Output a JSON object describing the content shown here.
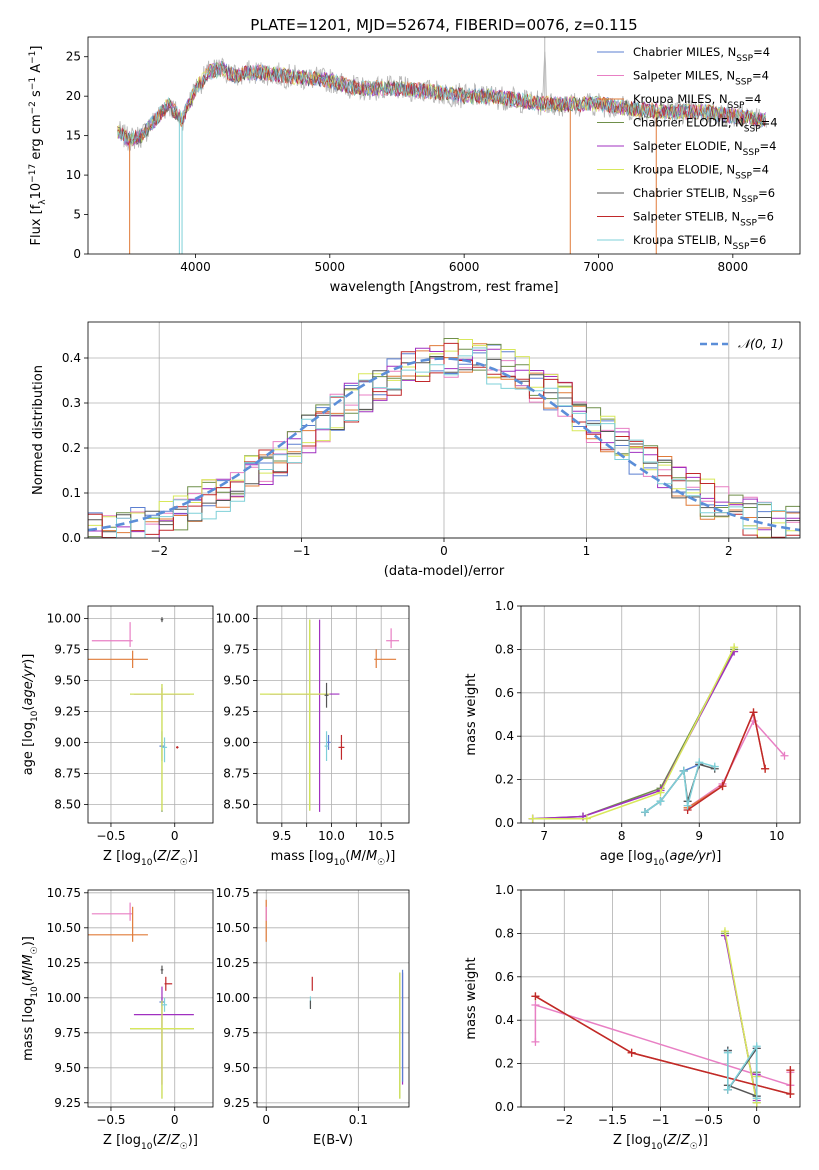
{
  "figure": {
    "title": "PLATE=1201, MJD=52674, FIBERID=0076, z=0.115"
  },
  "series_styles": [
    {
      "name": "Chabrier MILES, N_SSP=4",
      "label_main": "Chabrier MILES, N",
      "label_sub": "SSP",
      "label_tail": "=4",
      "color": "#5b7fd0"
    },
    {
      "name": "Salpeter MILES, N_SSP=4",
      "label_main": "Salpeter MILES, N",
      "label_sub": "SSP",
      "label_tail": "=4",
      "color": "#e87fc4"
    },
    {
      "name": "Kroupa MILES, N_SSP=4",
      "label_main": "Kroupa MILES, N",
      "label_sub": "SSP",
      "label_tail": "=4",
      "color": "#e07b39"
    },
    {
      "name": "Chabrier ELODIE, N_SSP=4",
      "label_main": "Chabrier ELODIE, N",
      "label_sub": "SSP",
      "label_tail": "=4",
      "color": "#6f8f4a"
    },
    {
      "name": "Salpeter ELODIE, N_SSP=4",
      "label_main": "Salpeter ELODIE, N",
      "label_sub": "SSP",
      "label_tail": "=4",
      "color": "#a030c0"
    },
    {
      "name": "Kroupa ELODIE, N_SSP=4",
      "label_main": "Kroupa ELODIE, N",
      "label_sub": "SSP",
      "label_tail": "=4",
      "color": "#d8e85a"
    },
    {
      "name": "Chabrier STELIB, N_SSP=6",
      "label_main": "Chabrier STELIB, N",
      "label_sub": "SSP",
      "label_tail": "=6",
      "color": "#555555"
    },
    {
      "name": "Salpeter STELIB, N_SSP=6",
      "label_main": "Salpeter STELIB, N",
      "label_sub": "SSP",
      "label_tail": "=6",
      "color": "#c0282a"
    },
    {
      "name": "Kroupa STELIB, N_SSP=6",
      "label_main": "Kroupa STELIB, N",
      "label_sub": "SSP",
      "label_tail": "=6",
      "color": "#7fd0d8"
    }
  ],
  "chart_data": [
    {
      "type": "line",
      "id": "spectrum",
      "title": "PLATE=1201, MJD=52674, FIBERID=0076, z=0.115",
      "xlabel": "wavelength [Angstrom, rest frame]",
      "ylabel": "Flux [f_λ 10^-17 erg cm^-2 s^-1 A^-1]",
      "xlim": [
        3200,
        8500
      ],
      "ylim": [
        0,
        27.5
      ],
      "xticks": [
        4000,
        5000,
        6000,
        7000,
        8000
      ],
      "yticks": [
        0,
        5,
        10,
        15,
        20,
        25
      ],
      "grid": false,
      "legend": "top-right",
      "anchors": [
        [
          3420,
          15.5
        ],
        [
          3500,
          14.5
        ],
        [
          3600,
          15
        ],
        [
          3700,
          17
        ],
        [
          3800,
          19
        ],
        [
          3900,
          17
        ],
        [
          4000,
          21
        ],
        [
          4100,
          23
        ],
        [
          4200,
          23.5
        ],
        [
          4300,
          22.5
        ],
        [
          4400,
          23
        ],
        [
          4500,
          23
        ],
        [
          4700,
          22.5
        ],
        [
          5000,
          22
        ],
        [
          5200,
          21
        ],
        [
          5500,
          21
        ],
        [
          5800,
          20.5
        ],
        [
          6000,
          20
        ],
        [
          6200,
          20
        ],
        [
          6400,
          19.5
        ],
        [
          6600,
          19
        ],
        [
          6800,
          19
        ],
        [
          7000,
          19
        ],
        [
          7200,
          18.5
        ],
        [
          7500,
          18
        ],
        [
          7800,
          18
        ],
        [
          8000,
          17.5
        ],
        [
          8250,
          17
        ]
      ],
      "series_note": "9 model spectra plus observed data overlapping"
    },
    {
      "type": "line",
      "id": "residuals",
      "xlabel": "(data-model)/error",
      "ylabel": "Normed distribution",
      "xlim": [
        -2.5,
        2.5
      ],
      "ylim": [
        0,
        0.48
      ],
      "xticks": [
        -2,
        -1,
        0,
        1,
        2
      ],
      "yticks": [
        0.0,
        0.1,
        0.2,
        0.3,
        0.4
      ],
      "grid": true,
      "legend": "top-right",
      "reference_label": "𝒩(0, 1)",
      "bin_width": 0.1
    },
    {
      "type": "scatter",
      "id": "age_vs_Z",
      "xlabel": "Z [log10(Z/Z☉)]",
      "ylabel": "age [log10(age/yr)]",
      "xlim": [
        -0.68,
        0.3
      ],
      "ylim": [
        8.35,
        10.1
      ],
      "xticks": [
        -0.5,
        0.0
      ],
      "yticks": [
        8.5,
        8.75,
        9.0,
        9.25,
        9.5,
        9.75,
        10.0
      ],
      "points": [
        {
          "s": 0,
          "x": -0.1,
          "y": 8.97,
          "ex": [
            0.02,
            0.02
          ],
          "ey": [
            0.12,
            0.12
          ]
        },
        {
          "s": 1,
          "x": -0.35,
          "y": 9.82,
          "ex": [
            0.3,
            0.02
          ],
          "ey": [
            0.05,
            0.15
          ]
        },
        {
          "s": 2,
          "x": -0.33,
          "y": 9.67,
          "ex": [
            0.35,
            0.12
          ],
          "ey": [
            0.07,
            0.07
          ]
        },
        {
          "s": 3,
          "x": -0.1,
          "y": 9.39,
          "ex": [
            0.25,
            0.25
          ],
          "ey": [
            0.95,
            0.08
          ]
        },
        {
          "s": 4,
          "x": -0.1,
          "y": 9.39,
          "ex": [
            0.22,
            0.22
          ],
          "ey": [
            0.05,
            0.05
          ]
        },
        {
          "s": 5,
          "x": -0.1,
          "y": 9.39,
          "ex": [
            0.25,
            0.25
          ],
          "ey": [
            0.94,
            0.08
          ]
        },
        {
          "s": 6,
          "x": -0.1,
          "y": 9.99,
          "ex": [
            0.01,
            0.01
          ],
          "ey": [
            0.02,
            0.02
          ]
        },
        {
          "s": 7,
          "x": 0.02,
          "y": 8.96,
          "ex": [
            0.01,
            0.01
          ],
          "ey": [
            0.01,
            0.01
          ]
        },
        {
          "s": 8,
          "x": -0.08,
          "y": 8.96,
          "ex": [
            0.02,
            0.02
          ],
          "ey": [
            0.12,
            0.08
          ]
        }
      ]
    },
    {
      "type": "scatter",
      "id": "age_vs_mass",
      "xlabel": "mass [log10(M/M☉)]",
      "ylabel": "",
      "xlim": [
        9.25,
        10.78
      ],
      "ylim": [
        8.35,
        10.1
      ],
      "xticks": [
        9.5,
        9.75,
        10.0,
        10.25,
        10.5
      ],
      "yticks": [
        8.5,
        8.75,
        9.0,
        9.25,
        9.5,
        9.75,
        10.0
      ],
      "xticklabels": [
        "9.5",
        "",
        "10.0",
        "",
        "10.5"
      ],
      "points": [
        {
          "s": 0,
          "x": 9.97,
          "y": 9.0,
          "ex": [
            0.02,
            0.02
          ],
          "ey": [
            0.06,
            0.06
          ]
        },
        {
          "s": 1,
          "x": 10.6,
          "y": 9.82,
          "ex": [
            0.05,
            0.08
          ],
          "ey": [
            0.06,
            0.1
          ]
        },
        {
          "s": 2,
          "x": 10.45,
          "y": 9.67,
          "ex": [
            0.02,
            0.2
          ],
          "ey": [
            0.07,
            0.08
          ]
        },
        {
          "s": 3,
          "x": 9.78,
          "y": 9.39,
          "ex": [
            0.5,
            0.2
          ],
          "ey": [
            0.94,
            0.6
          ]
        },
        {
          "s": 4,
          "x": 9.88,
          "y": 9.39,
          "ex": [
            0.5,
            0.2
          ],
          "ey": [
            0.95,
            0.6
          ]
        },
        {
          "s": 5,
          "x": 9.78,
          "y": 9.39,
          "ex": [
            0.5,
            0.2
          ],
          "ey": [
            0.94,
            0.6
          ]
        },
        {
          "s": 6,
          "x": 9.95,
          "y": 9.38,
          "ex": [
            0.02,
            0.02
          ],
          "ey": [
            0.1,
            0.1
          ]
        },
        {
          "s": 7,
          "x": 10.1,
          "y": 8.96,
          "ex": [
            0.03,
            0.03
          ],
          "ey": [
            0.1,
            0.1
          ]
        },
        {
          "s": 8,
          "x": 9.95,
          "y": 8.97,
          "ex": [
            0.02,
            0.02
          ],
          "ey": [
            0.12,
            0.12
          ]
        }
      ]
    },
    {
      "type": "line",
      "id": "weight_vs_age",
      "xlabel": "age [log10(age/yr)]",
      "ylabel": "mass weight",
      "xlim": [
        6.7,
        10.3
      ],
      "ylim": [
        0,
        1.0
      ],
      "xticks": [
        7,
        8,
        9,
        10
      ],
      "yticks": [
        0.0,
        0.2,
        0.4,
        0.6,
        0.8,
        1.0
      ],
      "grid": true,
      "series": [
        {
          "s": 0,
          "x": [
            8.3,
            8.5,
            8.8,
            9.0
          ],
          "y": [
            0.05,
            0.1,
            0.24,
            0.27
          ]
        },
        {
          "s": 1,
          "x": [
            8.85,
            9.3,
            9.7,
            10.1
          ],
          "y": [
            0.07,
            0.18,
            0.47,
            0.31
          ]
        },
        {
          "s": 2,
          "x": [
            8.85,
            9.3,
            9.7,
            9.85
          ],
          "y": [
            0.07,
            0.17,
            0.51,
            0.25
          ]
        },
        {
          "s": 3,
          "x": [
            6.85,
            7.5,
            8.5,
            9.45
          ],
          "y": [
            0.02,
            0.03,
            0.16,
            0.8
          ]
        },
        {
          "s": 4,
          "x": [
            6.85,
            7.5,
            8.5,
            9.45
          ],
          "y": [
            0.02,
            0.03,
            0.15,
            0.79
          ]
        },
        {
          "s": 5,
          "x": [
            6.85,
            7.55,
            8.5,
            9.45
          ],
          "y": [
            0.02,
            0.02,
            0.14,
            0.81
          ]
        },
        {
          "s": 6,
          "x": [
            8.3,
            8.5,
            8.8,
            8.85,
            9.0,
            9.2
          ],
          "y": [
            0.05,
            0.1,
            0.24,
            0.1,
            0.27,
            0.25
          ]
        },
        {
          "s": 7,
          "x": [
            8.85,
            9.3,
            9.7,
            9.85
          ],
          "y": [
            0.06,
            0.17,
            0.51,
            0.25
          ]
        },
        {
          "s": 8,
          "x": [
            8.3,
            8.5,
            8.8,
            8.85,
            9.0,
            9.2
          ],
          "y": [
            0.05,
            0.1,
            0.24,
            0.08,
            0.28,
            0.26
          ]
        }
      ]
    },
    {
      "type": "scatter",
      "id": "mass_vs_Z",
      "xlabel": "Z [log10(Z/Z☉)]",
      "ylabel": "mass [log10(M/M☉)]",
      "xlim": [
        -0.68,
        0.3
      ],
      "ylim": [
        9.22,
        10.77
      ],
      "xticks": [
        -0.5,
        0.0
      ],
      "yticks": [
        9.25,
        9.5,
        9.75,
        10.0,
        10.25,
        10.5,
        10.75
      ],
      "points": [
        {
          "s": 0,
          "x": -0.1,
          "y": 9.97,
          "ex": [
            0.02,
            0.02
          ],
          "ey": [
            0.03,
            0.03
          ]
        },
        {
          "s": 1,
          "x": -0.35,
          "y": 10.6,
          "ex": [
            0.3,
            0.02
          ],
          "ey": [
            0.05,
            0.08
          ]
        },
        {
          "s": 2,
          "x": -0.33,
          "y": 10.45,
          "ex": [
            0.35,
            0.12
          ],
          "ey": [
            0.05,
            0.2
          ]
        },
        {
          "s": 3,
          "x": -0.1,
          "y": 9.78,
          "ex": [
            0.25,
            0.25
          ],
          "ey": [
            0.5,
            0.2
          ]
        },
        {
          "s": 4,
          "x": -0.1,
          "y": 9.88,
          "ex": [
            0.22,
            0.25
          ],
          "ey": [
            0.5,
            0.2
          ]
        },
        {
          "s": 5,
          "x": -0.1,
          "y": 9.78,
          "ex": [
            0.25,
            0.25
          ],
          "ey": [
            0.5,
            0.2
          ]
        },
        {
          "s": 6,
          "x": -0.1,
          "y": 10.2,
          "ex": [
            0.01,
            0.01
          ],
          "ey": [
            0.03,
            0.03
          ]
        },
        {
          "s": 7,
          "x": -0.07,
          "y": 10.1,
          "ex": [
            0.01,
            0.05
          ],
          "ey": [
            0.05,
            0.05
          ]
        },
        {
          "s": 8,
          "x": -0.08,
          "y": 9.95,
          "ex": [
            0.02,
            0.02
          ],
          "ey": [
            0.05,
            0.05
          ]
        }
      ]
    },
    {
      "type": "scatter",
      "id": "mass_vs_ebv",
      "xlabel": "E(B-V)",
      "ylabel": "",
      "xlim": [
        -0.01,
        0.155
      ],
      "ylim": [
        9.22,
        10.77
      ],
      "xticks": [
        0.0,
        0.1
      ],
      "yticks": [
        9.25,
        9.5,
        9.75,
        10.0,
        10.25,
        10.5,
        10.75
      ],
      "points": [
        {
          "s": 2,
          "x": 0.0,
          "y": 10.5,
          "ex": [
            0,
            0
          ],
          "ey": [
            0.1,
            0.2
          ]
        },
        {
          "s": 1,
          "x": 0.0,
          "y": 10.6,
          "ex": [
            0,
            0
          ],
          "ey": [
            0.05,
            0.05
          ]
        },
        {
          "s": 7,
          "x": 0.05,
          "y": 10.1,
          "ex": [
            0,
            0
          ],
          "ey": [
            0.05,
            0.05
          ]
        },
        {
          "s": 8,
          "x": 0.048,
          "y": 9.97,
          "ex": [
            0,
            0
          ],
          "ey": [
            0.04,
            0.04
          ]
        },
        {
          "s": 6,
          "x": 0.048,
          "y": 9.95,
          "ex": [
            0,
            0
          ],
          "ey": [
            0.03,
            0.03
          ]
        },
        {
          "s": 3,
          "x": 0.145,
          "y": 9.78,
          "ex": [
            0,
            0
          ],
          "ey": [
            0.5,
            0.4
          ]
        },
        {
          "s": 5,
          "x": 0.145,
          "y": 9.78,
          "ex": [
            0,
            0
          ],
          "ey": [
            0.5,
            0.4
          ]
        },
        {
          "s": 4,
          "x": 0.148,
          "y": 9.88,
          "ex": [
            0,
            0
          ],
          "ey": [
            0.5,
            0.3
          ]
        },
        {
          "s": 0,
          "x": 0.148,
          "y": 9.85,
          "ex": [
            0,
            0
          ],
          "ey": [
            0.45,
            0.35
          ]
        }
      ]
    },
    {
      "type": "line",
      "id": "weight_vs_Z",
      "xlabel": "Z [log10(Z/Z☉)]",
      "ylabel": "mass weight",
      "xlim": [
        -2.45,
        0.45
      ],
      "ylim": [
        0,
        1.0
      ],
      "xticks": [
        -2.0,
        -1.5,
        -1.0,
        -0.5,
        0.0
      ],
      "yticks": [
        0.0,
        0.2,
        0.4,
        0.6,
        0.8,
        1.0
      ],
      "grid": true,
      "series": [
        {
          "s": 0,
          "x": [
            -0.3,
            -0.3,
            0.0,
            0.0
          ],
          "y": [
            0.26,
            0.08,
            0.27,
            0.05
          ]
        },
        {
          "s": 1,
          "x": [
            -2.3,
            -2.3,
            0.35,
            0.35
          ],
          "y": [
            0.3,
            0.47,
            0.1,
            0.16
          ]
        },
        {
          "s": 2,
          "x": [
            -2.3,
            -1.3,
            0.35,
            0.35
          ],
          "y": [
            0.51,
            0.25,
            0.06,
            0.17
          ]
        },
        {
          "s": 3,
          "x": [
            -0.33,
            0.0,
            0.0
          ],
          "y": [
            0.8,
            0.02,
            0.16
          ]
        },
        {
          "s": 4,
          "x": [
            -0.33,
            0.0,
            0.0
          ],
          "y": [
            0.79,
            0.03,
            0.15
          ]
        },
        {
          "s": 5,
          "x": [
            -0.33,
            0.0,
            0.0
          ],
          "y": [
            0.81,
            0.02,
            0.14
          ]
        },
        {
          "s": 6,
          "x": [
            -0.3,
            -0.3,
            0.0,
            0.0,
            -0.3
          ],
          "y": [
            0.26,
            0.08,
            0.27,
            0.05,
            0.1
          ]
        },
        {
          "s": 7,
          "x": [
            -2.3,
            -1.3,
            0.35,
            0.35
          ],
          "y": [
            0.51,
            0.25,
            0.06,
            0.17
          ]
        },
        {
          "s": 8,
          "x": [
            -0.3,
            -0.3,
            0.0,
            0.0
          ],
          "y": [
            0.25,
            0.08,
            0.28,
            0.04
          ]
        }
      ]
    }
  ]
}
